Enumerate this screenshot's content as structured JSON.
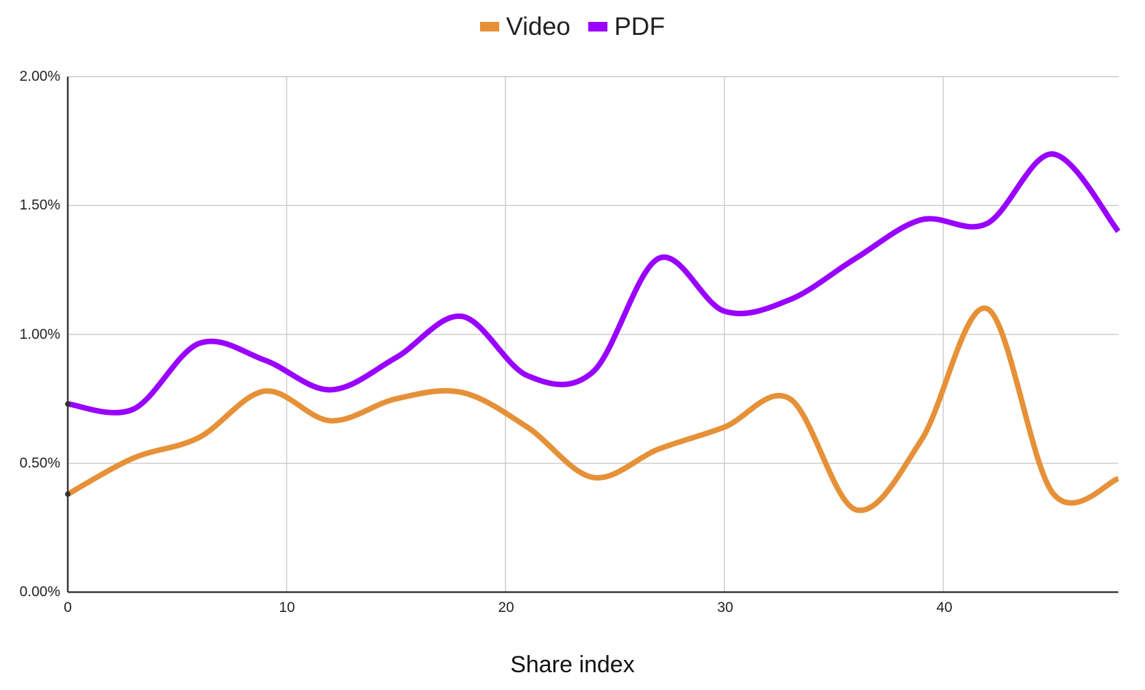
{
  "legend": [
    {
      "label": "Video",
      "color": "#E69138"
    },
    {
      "label": "PDF",
      "color": "#9900FF"
    }
  ],
  "axes": {
    "y_ticks": [
      "2.00%",
      "1.50%",
      "1.00%",
      "0.50%",
      "0.00%"
    ],
    "x_ticks": [
      "0",
      "10",
      "20",
      "30",
      "40"
    ],
    "x_label": "Share index"
  },
  "chart_data": {
    "type": "line",
    "title": "",
    "xlabel": "Share index",
    "ylabel": "",
    "x": [
      0,
      3,
      6,
      9,
      12,
      15,
      18,
      21,
      24,
      27,
      30,
      33,
      36,
      39,
      42,
      45,
      48
    ],
    "series": [
      {
        "name": "Video",
        "color": "#E69138",
        "values": [
          0.38,
          0.52,
          0.6,
          0.78,
          0.665,
          0.75,
          0.775,
          0.64,
          0.445,
          0.555,
          0.64,
          0.75,
          0.32,
          0.59,
          1.1,
          0.385,
          0.44
        ]
      },
      {
        "name": "PDF",
        "color": "#9900FF",
        "values": [
          0.73,
          0.71,
          0.965,
          0.9,
          0.785,
          0.91,
          1.07,
          0.84,
          0.855,
          1.295,
          1.09,
          1.135,
          1.295,
          1.445,
          1.43,
          1.7,
          1.4
        ]
      }
    ],
    "ylim": [
      0,
      2.0
    ],
    "xlim": [
      0,
      48
    ],
    "y_unit": "%",
    "grid": true,
    "legend_position": "top",
    "smooth": true
  }
}
